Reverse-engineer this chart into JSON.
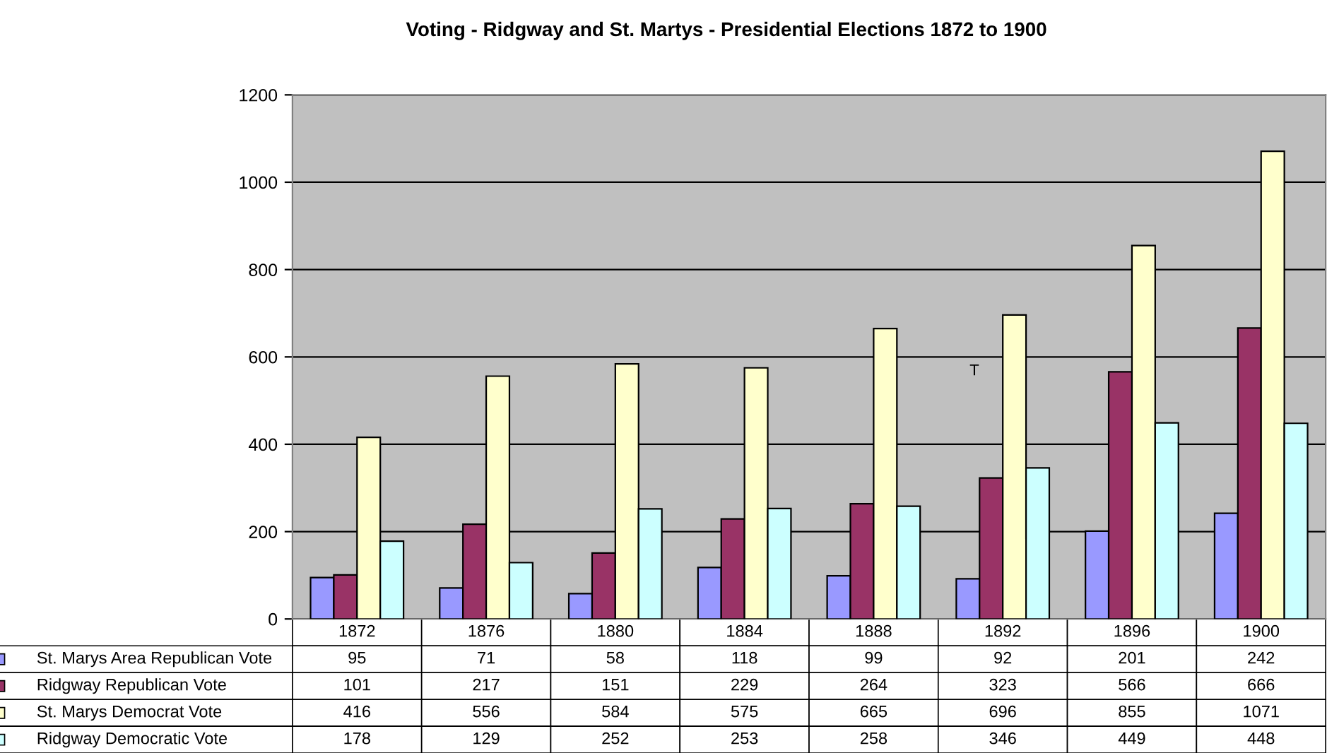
{
  "chart_data": {
    "type": "bar",
    "title": "Voting - Ridgway and St. Martys - Presidential Elections 1872 to 1900",
    "categories": [
      "1872",
      "1876",
      "1880",
      "1884",
      "1888",
      "1892",
      "1896",
      "1900"
    ],
    "series": [
      {
        "name": "St. Marys Area Republican Vote",
        "color": "#9999ff",
        "values": [
          95,
          71,
          58,
          118,
          99,
          92,
          201,
          242
        ]
      },
      {
        "name": "Ridgway Republican Vote",
        "color": "#993366",
        "values": [
          101,
          217,
          151,
          229,
          264,
          323,
          566,
          666
        ]
      },
      {
        "name": "St. Marys Democrat Vote",
        "color": "#ffffcc",
        "values": [
          416,
          556,
          584,
          575,
          665,
          696,
          855,
          1071
        ]
      },
      {
        "name": "Ridgway Democratic Vote",
        "color": "#ccffff",
        "values": [
          178,
          129,
          252,
          253,
          258,
          346,
          449,
          448
        ]
      }
    ],
    "ylim": [
      0,
      1200
    ],
    "yticks": [
      0,
      200,
      400,
      600,
      800,
      1000,
      1200
    ],
    "grid": "y",
    "legend": "bottom",
    "data_labels": true,
    "annotations": [
      "T"
    ]
  }
}
